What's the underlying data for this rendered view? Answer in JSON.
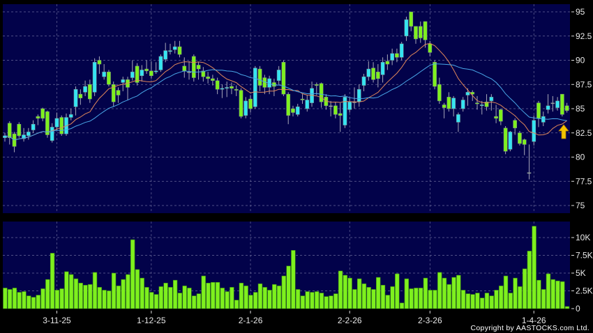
{
  "copyright": "Copyright by AASTOCKS.com Ltd.",
  "colors": {
    "background": "#000000",
    "panel": "#02024a",
    "grid": "#6a6a9a",
    "up_candle": "#35e4f2",
    "down_candle": "#7ef01e",
    "doji": "#b0b0b0",
    "wick": "#a8a8b8",
    "volume_bar": "#7ef01e",
    "ma_short": "#e0875a",
    "ma_long": "#4aa8e8",
    "signal_arrow": "#f5c400"
  },
  "indicator_icon": "up-arrow",
  "chart_data": [
    {
      "type": "candlestick",
      "title": "",
      "ylim": [
        74,
        96
      ],
      "yticks": [
        "95",
        "92.5",
        "90",
        "87.5",
        "85",
        "82.5",
        "80",
        "77.5",
        "75"
      ],
      "ytick_values": [
        95,
        92.5,
        90,
        87.5,
        85,
        82.5,
        80,
        77.5,
        75
      ],
      "grid": true,
      "x_tick_labels": [
        {
          "label": "3-11-25",
          "index": 11
        },
        {
          "label": "1-12-25",
          "index": 31
        },
        {
          "label": "2-1-26",
          "index": 52
        },
        {
          "label": "2-2-26",
          "index": 73
        },
        {
          "label": "2-3-26",
          "index": 90
        },
        {
          "label": "1-4-26",
          "index": 112
        }
      ],
      "moving_averages": [
        {
          "color_key": "ma_short",
          "period": 10
        },
        {
          "color_key": "ma_long",
          "period": 20
        }
      ],
      "ohlc_columns": [
        "open",
        "high",
        "low",
        "close"
      ],
      "ohlc": [
        [
          82.0,
          82.5,
          81.6,
          82.2
        ],
        [
          83.5,
          83.7,
          81.3,
          82.0
        ],
        [
          82.4,
          82.6,
          80.5,
          81.1
        ],
        [
          83.4,
          83.6,
          82.0,
          82.2
        ],
        [
          81.9,
          83.0,
          81.6,
          82.3
        ],
        [
          82.2,
          83.0,
          81.8,
          82.6
        ],
        [
          82.8,
          83.8,
          82.5,
          83.4
        ],
        [
          84.2,
          84.4,
          83.3,
          84.0
        ],
        [
          85.0,
          85.1,
          83.7,
          84.0
        ],
        [
          84.7,
          84.8,
          82.0,
          82.3
        ],
        [
          81.7,
          83.5,
          81.5,
          83.1
        ],
        [
          83.1,
          84.6,
          82.8,
          84.0
        ],
        [
          84.1,
          84.3,
          82.2,
          82.4
        ],
        [
          82.4,
          84.5,
          82.2,
          84.1
        ],
        [
          84.1,
          85.0,
          83.8,
          84.4
        ],
        [
          85.2,
          87.3,
          84.3,
          87.0
        ],
        [
          86.5,
          87.0,
          85.4,
          86.1
        ],
        [
          86.7,
          87.9,
          86.3,
          87.3
        ],
        [
          87.5,
          88.0,
          85.6,
          86.0
        ],
        [
          86.7,
          90.2,
          86.3,
          89.8
        ],
        [
          90.0,
          90.4,
          88.6,
          89.6
        ],
        [
          88.3,
          89.6,
          88.0,
          88.8
        ],
        [
          88.8,
          89.0,
          87.3,
          87.5
        ],
        [
          87.5,
          87.8,
          85.2,
          85.7
        ],
        [
          86.9,
          87.2,
          85.6,
          86.4
        ],
        [
          87.7,
          88.3,
          86.8,
          88.0
        ],
        [
          88.0,
          88.3,
          85.9,
          87.2
        ],
        [
          88.2,
          90.0,
          87.9,
          88.8
        ],
        [
          89.4,
          89.7,
          87.4,
          87.7
        ],
        [
          88.4,
          89.5,
          87.8,
          89.0
        ],
        [
          89.1,
          90.0,
          88.6,
          88.9
        ],
        [
          88.9,
          89.9,
          88.1,
          88.4
        ],
        [
          88.8,
          89.8,
          88.6,
          88.9
        ],
        [
          89.0,
          90.6,
          88.8,
          90.4
        ],
        [
          90.1,
          91.8,
          89.8,
          91.0
        ],
        [
          90.9,
          91.7,
          90.6,
          91.0
        ],
        [
          91.1,
          92.0,
          90.7,
          91.4
        ],
        [
          91.4,
          92.0,
          90.3,
          90.6
        ],
        [
          89.4,
          90.3,
          88.2,
          88.9
        ],
        [
          88.8,
          89.9,
          88.0,
          88.8
        ],
        [
          90.4,
          90.6,
          87.8,
          88.2
        ],
        [
          89.5,
          89.8,
          88.0,
          89.1
        ],
        [
          88.9,
          89.3,
          87.8,
          88.3
        ],
        [
          88.3,
          88.8,
          87.6,
          88.1
        ],
        [
          88.1,
          88.5,
          87.4,
          87.9
        ],
        [
          87.9,
          88.2,
          86.5,
          87.0
        ],
        [
          87.0,
          87.5,
          86.1,
          87.1
        ],
        [
          87.1,
          87.8,
          86.2,
          87.2
        ],
        [
          87.3,
          87.7,
          86.5,
          87.1
        ],
        [
          87.0,
          87.4,
          86.3,
          86.9
        ],
        [
          86.9,
          87.1,
          84.0,
          84.2
        ],
        [
          84.3,
          86.2,
          84.0,
          85.8
        ],
        [
          86.0,
          86.4,
          84.6,
          85.0
        ],
        [
          85.2,
          89.4,
          85.0,
          89.2
        ],
        [
          89.1,
          89.4,
          86.8,
          87.4
        ],
        [
          88.2,
          88.5,
          86.5,
          87.2
        ],
        [
          87.2,
          88.4,
          86.5,
          88.1
        ],
        [
          87.7,
          88.1,
          86.3,
          87.3
        ],
        [
          87.9,
          89.4,
          87.5,
          89.0
        ],
        [
          89.8,
          90.0,
          86.3,
          86.5
        ],
        [
          86.5,
          86.7,
          83.4,
          84.3
        ],
        [
          85.0,
          85.3,
          84.2,
          84.6
        ],
        [
          84.4,
          85.5,
          84.2,
          85.2
        ],
        [
          86.0,
          86.5,
          85.5,
          85.9
        ],
        [
          85.0,
          86.4,
          84.7,
          85.9
        ],
        [
          85.6,
          87.8,
          85.2,
          87.1
        ],
        [
          87.5,
          87.7,
          86.4,
          87.4
        ],
        [
          87.6,
          87.7,
          85.1,
          85.7
        ],
        [
          86.2,
          86.5,
          84.9,
          85.3
        ],
        [
          85.3,
          85.8,
          84.2,
          85.3
        ],
        [
          85.3,
          85.7,
          84.0,
          84.4
        ],
        [
          84.5,
          85.6,
          82.6,
          84.3
        ],
        [
          83.3,
          86.5,
          83.0,
          86.2
        ],
        [
          84.9,
          86.2,
          84.6,
          85.7
        ],
        [
          85.7,
          87.2,
          85.0,
          85.7
        ],
        [
          85.7,
          87.5,
          85.2,
          87.0
        ],
        [
          87.4,
          88.6,
          86.8,
          88.3
        ],
        [
          88.3,
          89.9,
          87.9,
          89.1
        ],
        [
          89.2,
          89.8,
          87.7,
          88.0
        ],
        [
          88.8,
          89.6,
          87.2,
          88.1
        ],
        [
          88.5,
          90.3,
          87.7,
          89.8
        ],
        [
          89.9,
          90.6,
          89.0,
          89.6
        ],
        [
          90.0,
          91.2,
          89.5,
          90.7
        ],
        [
          90.7,
          91.2,
          89.8,
          90.3
        ],
        [
          90.3,
          91.9,
          90.0,
          91.7
        ],
        [
          92.5,
          94.5,
          92.0,
          94.2
        ],
        [
          95.0,
          95.0,
          93.0,
          93.5
        ],
        [
          93.5,
          93.5,
          91.7,
          92.2
        ],
        [
          93.5,
          94.0,
          91.8,
          92.3
        ],
        [
          94.0,
          94.0,
          91.3,
          92.1
        ],
        [
          91.7,
          92.0,
          90.4,
          90.8
        ],
        [
          89.8,
          90.0,
          87.0,
          87.3
        ],
        [
          87.5,
          88.2,
          85.5,
          85.8
        ],
        [
          85.4,
          85.6,
          84.0,
          85.1
        ],
        [
          86.2,
          86.7,
          84.7,
          85.0
        ],
        [
          85.0,
          86.3,
          84.2,
          86.1
        ],
        [
          83.6,
          84.6,
          82.6,
          84.4
        ],
        [
          85.0,
          86.2,
          84.7,
          85.9
        ],
        [
          86.4,
          87.1,
          85.3,
          86.7
        ],
        [
          86.7,
          86.9,
          85.8,
          86.5
        ],
        [
          85.6,
          86.3,
          84.9,
          85.5
        ],
        [
          85.3,
          85.8,
          84.4,
          85.4
        ],
        [
          85.7,
          86.5,
          84.8,
          85.2
        ],
        [
          85.8,
          86.5,
          84.8,
          86.2
        ],
        [
          84.2,
          85.4,
          83.5,
          84.0
        ],
        [
          84.9,
          85.0,
          83.3,
          83.7
        ],
        [
          83.0,
          83.2,
          80.3,
          80.6
        ],
        [
          80.8,
          82.7,
          80.6,
          82.6
        ],
        [
          83.8,
          84.0,
          82.3,
          83.0
        ],
        [
          82.5,
          82.7,
          81.2,
          81.4
        ],
        [
          81.8,
          81.9,
          80.2,
          81.3
        ],
        [
          78.4,
          81.3,
          77.7,
          78.4
        ],
        [
          81.6,
          84.3,
          81.2,
          83.8
        ],
        [
          85.6,
          85.8,
          83.1,
          84.0
        ],
        [
          83.6,
          84.7,
          83.2,
          84.2
        ],
        [
          84.9,
          86.5,
          84.5,
          85.3
        ],
        [
          85.6,
          86.3,
          84.7,
          85.6
        ],
        [
          85.1,
          86.2,
          84.8,
          85.8
        ],
        [
          86.5,
          86.5,
          84.2,
          84.4
        ],
        [
          85.3,
          85.6,
          84.6,
          84.8
        ]
      ]
    },
    {
      "type": "bar",
      "title": "",
      "ylim": [
        0,
        12
      ],
      "yticks": [
        "10K",
        "7.5K",
        "5K",
        "2.5K",
        "0"
      ],
      "ytick_values": [
        10,
        7.5,
        5,
        2.5,
        0
      ],
      "unit": "K",
      "grid": true,
      "values": [
        2.9,
        2.7,
        2.9,
        2.3,
        2.4,
        1.8,
        1.6,
        1.9,
        2.8,
        4.1,
        7.8,
        2.6,
        2.8,
        5.2,
        4.8,
        4.2,
        3.6,
        3.3,
        3.4,
        5.1,
        3.0,
        2.6,
        2.5,
        5.0,
        3.2,
        4.1,
        4.8,
        9.7,
        5.5,
        4.3,
        3.0,
        2.3,
        2.0,
        3.1,
        3.6,
        3.0,
        4.0,
        2.2,
        3.2,
        2.9,
        1.8,
        2.1,
        4.6,
        3.6,
        3.7,
        3.7,
        2.9,
        2.4,
        3.0,
        1.2,
        3.6,
        3.2,
        1.9,
        2.3,
        3.5,
        3.0,
        2.6,
        3.4,
        3.2,
        4.6,
        6.0,
        8.2,
        2.7,
        1.8,
        2.4,
        2.3,
        2.4,
        2.2,
        1.7,
        1.8,
        2.1,
        5.3,
        4.7,
        4.3,
        2.7,
        4.2,
        3.5,
        3.0,
        2.7,
        4.4,
        3.3,
        1.9,
        3.1,
        4.9,
        0.8,
        4.2,
        2.8,
        2.9,
        2.9,
        4.3,
        2.6,
        2.6,
        5.1,
        4.3,
        3.4,
        4.4,
        4.7,
        2.6,
        2.1,
        2.0,
        2.2,
        1.5,
        2.2,
        1.8,
        2.6,
        3.2,
        4.6,
        2.2,
        4.3,
        3.1,
        5.6,
        8.1,
        11.6,
        4.0,
        2.7,
        4.9,
        4.1,
        3.9,
        3.8,
        0.3
      ]
    }
  ]
}
